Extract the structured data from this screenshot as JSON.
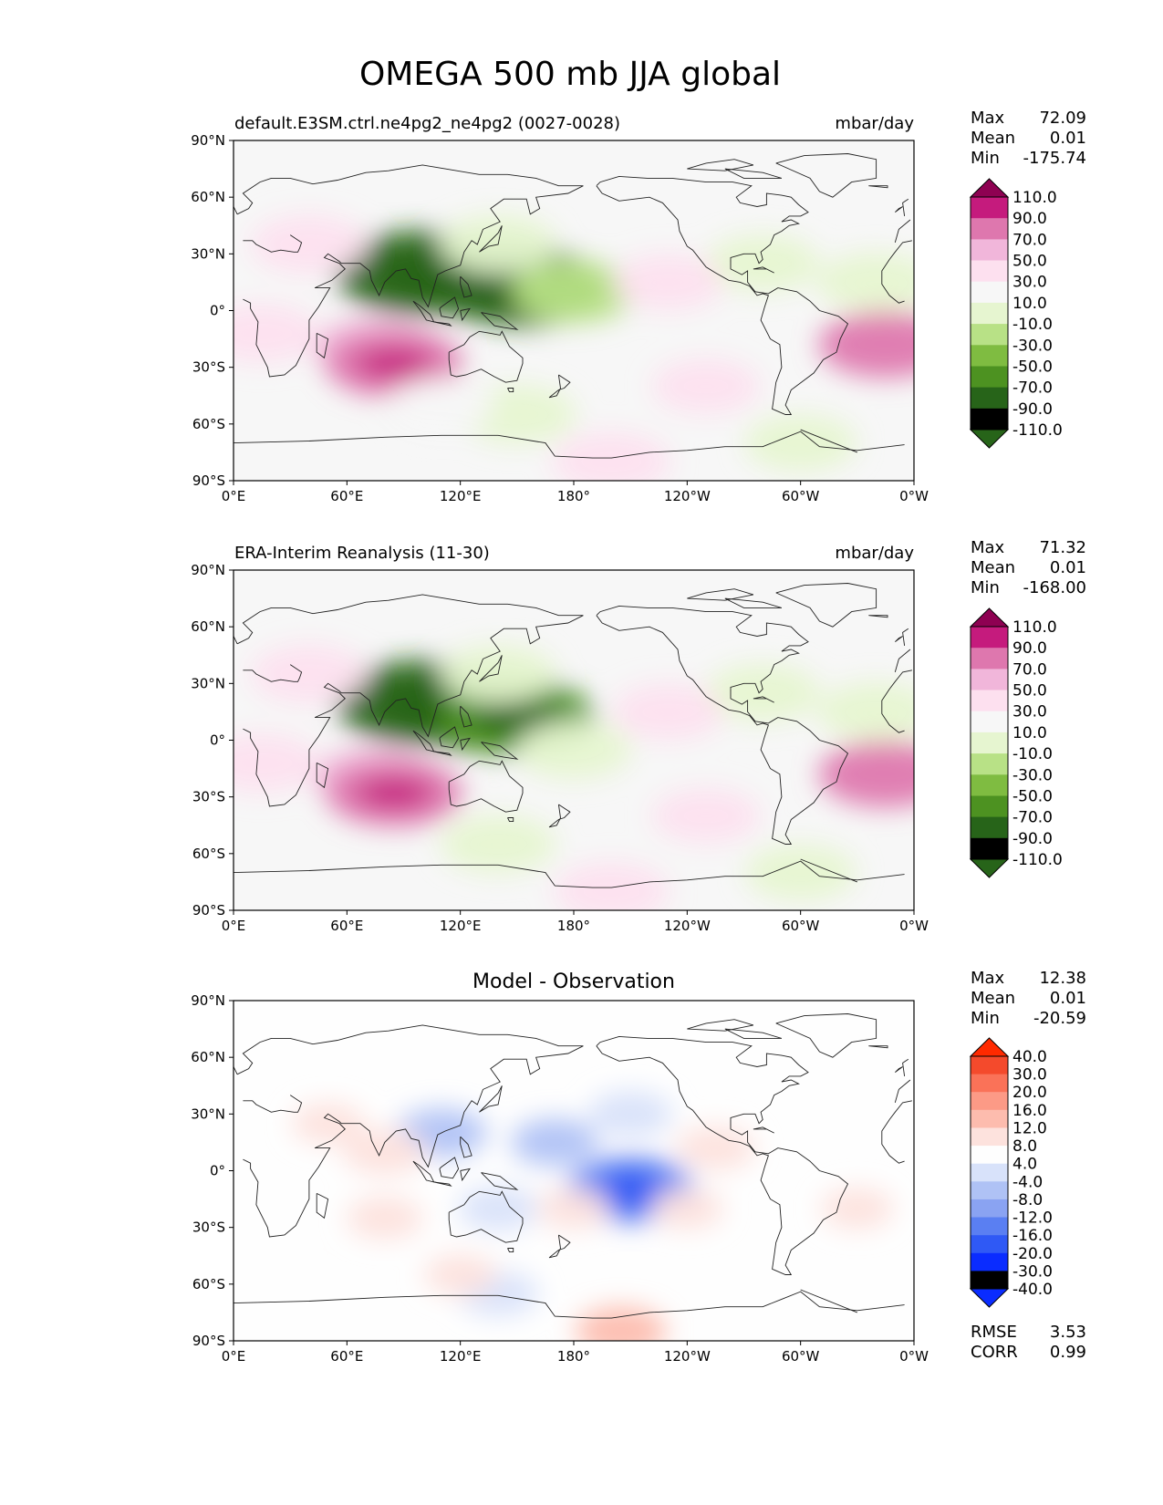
{
  "title": "OMEGA 500 mb JJA global",
  "units": "mbar/day",
  "x_ticks": [
    "0°E",
    "60°E",
    "120°E",
    "180°",
    "120°W",
    "60°W",
    "0°W"
  ],
  "y_ticks": [
    "90°N",
    "60°N",
    "30°N",
    "0°",
    "30°S",
    "60°S",
    "90°S"
  ],
  "stat_labels": {
    "max": "Max",
    "mean": "Mean",
    "min": "Min",
    "rmse": "RMSE",
    "corr": "CORR"
  },
  "colors": {
    "field_levels": [
      "#276419",
      "#4d9221",
      "#7fbc41",
      "#b8e186",
      "#e6f5d0",
      "#f7f7f7",
      "#fde0ef",
      "#f1b6da",
      "#de77ae",
      "#c51b7d",
      "#8e0152"
    ],
    "diff_levels": [
      "#0a2cff",
      "#2f59f5",
      "#5a7ff2",
      "#8aa3f2",
      "#afc2f5",
      "#d8e2fa",
      "#fefefe",
      "#fde2dd",
      "#fdbcae",
      "#fc9a86",
      "#fa7258",
      "#f44a2c",
      "#ff2a00"
    ]
  },
  "chart_data": [
    {
      "type": "heatmap",
      "title": "default.E3SM.ctrl.ne4pg2_ne4pg2 (0027-0028)",
      "units": "mbar/day",
      "stats": {
        "max": "72.09",
        "mean": "0.01",
        "min": "-175.74"
      },
      "colorbar_ticks": [
        "110.0",
        "90.0",
        "70.0",
        "50.0",
        "30.0",
        "10.0",
        "-10.0",
        "-30.0",
        "-50.0",
        "-70.0",
        "-90.0",
        "-110.0"
      ],
      "colorbar_extend": "both",
      "xlim": [
        0,
        360
      ],
      "ylim": [
        -90,
        90
      ],
      "features": [
        {
          "lon": 140,
          "lat": 16,
          "value": -110
        },
        {
          "lon": 100,
          "lat": 20,
          "value": -125
        },
        {
          "lon": 155,
          "lat": 12,
          "value": -95
        },
        {
          "lon": 180,
          "lat": 10,
          "value": -40
        },
        {
          "lon": 140,
          "lat": 35,
          "value": -28
        },
        {
          "lon": 280,
          "lat": 25,
          "value": -22
        },
        {
          "lon": 340,
          "lat": 15,
          "value": -30
        },
        {
          "lon": 150,
          "lat": -55,
          "value": -30
        },
        {
          "lon": 300,
          "lat": -70,
          "value": -20
        },
        {
          "lon": 15,
          "lat": -12,
          "value": 28
        },
        {
          "lon": 75,
          "lat": -20,
          "value": 35
        },
        {
          "lon": 85,
          "lat": -28,
          "value": 62
        },
        {
          "lon": 345,
          "lat": -18,
          "value": 55
        },
        {
          "lon": 230,
          "lat": 15,
          "value": 18
        },
        {
          "lon": 40,
          "lat": 35,
          "value": 28
        },
        {
          "lon": 110,
          "lat": -50,
          "value": 10
        },
        {
          "lon": 200,
          "lat": -80,
          "value": 30
        },
        {
          "lon": 250,
          "lat": -40,
          "value": 12
        }
      ]
    },
    {
      "type": "heatmap",
      "title": "ERA-Interim Reanalysis (11-30)",
      "units": "mbar/day",
      "stats": {
        "max": "71.32",
        "mean": "0.01",
        "min": "-168.00"
      },
      "colorbar_ticks": [
        "110.0",
        "90.0",
        "70.0",
        "50.0",
        "30.0",
        "10.0",
        "-10.0",
        "-30.0",
        "-50.0",
        "-70.0",
        "-90.0",
        "-110.0"
      ],
      "colorbar_extend": "both",
      "xlim": [
        0,
        360
      ],
      "ylim": [
        -90,
        90
      ],
      "features": [
        {
          "lon": 135,
          "lat": 15,
          "value": -105
        },
        {
          "lon": 100,
          "lat": 20,
          "value": -120
        },
        {
          "lon": 150,
          "lat": 12,
          "value": -90
        },
        {
          "lon": 180,
          "lat": -5,
          "value": -25
        },
        {
          "lon": 140,
          "lat": 35,
          "value": -25
        },
        {
          "lon": 280,
          "lat": 25,
          "value": -24
        },
        {
          "lon": 340,
          "lat": 15,
          "value": -28
        },
        {
          "lon": 140,
          "lat": -55,
          "value": -25
        },
        {
          "lon": 300,
          "lat": -70,
          "value": -18
        },
        {
          "lon": 15,
          "lat": -12,
          "value": 28
        },
        {
          "lon": 75,
          "lat": -20,
          "value": 35
        },
        {
          "lon": 85,
          "lat": -28,
          "value": 60
        },
        {
          "lon": 345,
          "lat": -18,
          "value": 55
        },
        {
          "lon": 230,
          "lat": 15,
          "value": 18
        },
        {
          "lon": 40,
          "lat": 35,
          "value": 28
        },
        {
          "lon": 200,
          "lat": -80,
          "value": 25
        },
        {
          "lon": 250,
          "lat": -40,
          "value": 12
        }
      ]
    },
    {
      "type": "heatmap",
      "title": "Model - Observation",
      "stats": {
        "max": "12.38",
        "mean": "0.01",
        "min": "-20.59",
        "rmse": "3.53",
        "corr": "0.99"
      },
      "colorbar_ticks": [
        "40.0",
        "30.0",
        "20.0",
        "16.0",
        "12.0",
        "8.0",
        "4.0",
        "-4.0",
        "-8.0",
        "-12.0",
        "-16.0",
        "-20.0",
        "-30.0",
        "-40.0"
      ],
      "colorbar_extend": "both",
      "xlim": [
        0,
        360
      ],
      "ylim": [
        -90,
        90
      ],
      "features": [
        {
          "lon": 210,
          "lat": -10,
          "value": -20
        },
        {
          "lon": 110,
          "lat": 20,
          "value": -10
        },
        {
          "lon": 170,
          "lat": 15,
          "value": -9
        },
        {
          "lon": 210,
          "lat": 30,
          "value": -8
        },
        {
          "lon": 140,
          "lat": -20,
          "value": -7
        },
        {
          "lon": 140,
          "lat": -65,
          "value": -7
        },
        {
          "lon": 20,
          "lat": -60,
          "value": -4
        },
        {
          "lon": 80,
          "lat": 10,
          "value": 8
        },
        {
          "lon": 50,
          "lat": 25,
          "value": 5
        },
        {
          "lon": 255,
          "lat": 12,
          "value": 7
        },
        {
          "lon": 330,
          "lat": -20,
          "value": 5
        },
        {
          "lon": 205,
          "lat": -85,
          "value": 10
        },
        {
          "lon": 80,
          "lat": -25,
          "value": 6
        },
        {
          "lon": 120,
          "lat": -55,
          "value": 5
        },
        {
          "lon": 240,
          "lat": -20,
          "value": 5
        },
        {
          "lon": 180,
          "lat": -20,
          "value": 5
        }
      ]
    }
  ]
}
